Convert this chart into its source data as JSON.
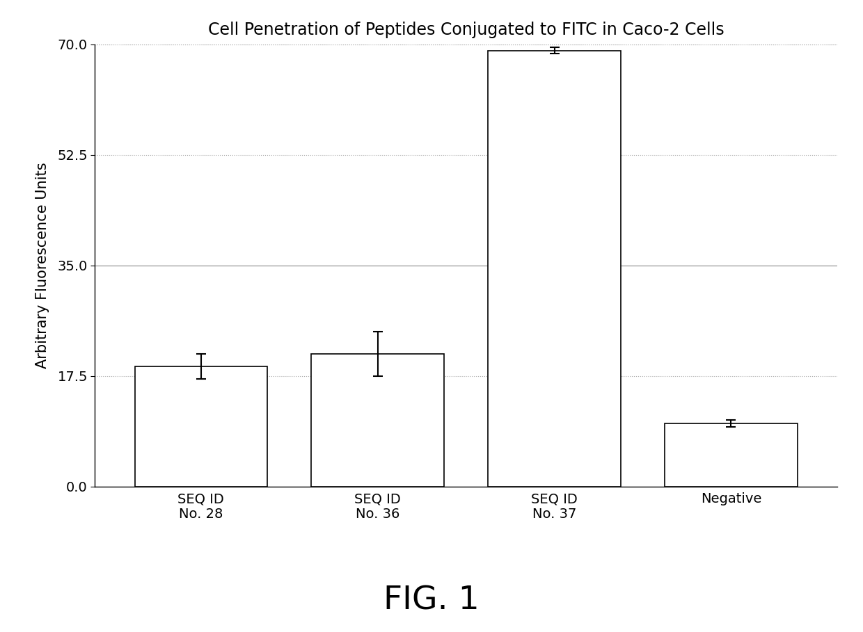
{
  "title": "Cell Penetration of Peptides Conjugated to FITC in Caco-2 Cells",
  "ylabel": "Arbitrary Fluorescence Units",
  "categories": [
    "SEQ ID\nNo. 28",
    "SEQ ID\nNo. 36",
    "SEQ ID\nNo. 37",
    "Negative"
  ],
  "values": [
    19.0,
    21.0,
    69.0,
    10.0
  ],
  "errors": [
    2.0,
    3.5,
    0.5,
    0.5
  ],
  "ylim": [
    0,
    70
  ],
  "yticks": [
    0.0,
    17.5,
    35.0,
    52.5,
    70.0
  ],
  "bar_color": "#ffffff",
  "bar_edgecolor": "#000000",
  "bar_linewidth": 1.2,
  "error_color": "#000000",
  "background_color": "#ffffff",
  "title_fontsize": 17,
  "ylabel_fontsize": 15,
  "tick_fontsize": 14,
  "caption": "FIG. 1",
  "caption_fontsize": 34,
  "fig_width": 12.4,
  "fig_height": 9.09,
  "dpi": 100,
  "bar_width": 0.75,
  "xlim_left": -0.6,
  "xlim_right": 3.6
}
